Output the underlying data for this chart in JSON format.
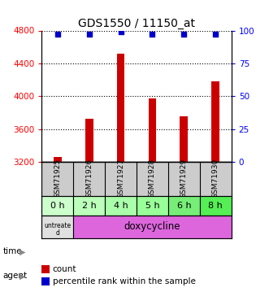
{
  "title": "GDS1550 / 11150_at",
  "samples": [
    "GSM71925",
    "GSM71926",
    "GSM71927",
    "GSM71928",
    "GSM71929",
    "GSM71930"
  ],
  "counts": [
    3260,
    3720,
    4520,
    3970,
    3750,
    4180
  ],
  "percentiles": [
    97,
    97,
    99,
    97,
    97,
    97
  ],
  "bar_color": "#cc0000",
  "dot_color": "#0000cc",
  "ylim_left": [
    3200,
    4800
  ],
  "ylim_right": [
    0,
    100
  ],
  "yticks_left": [
    3200,
    3600,
    4000,
    4400,
    4800
  ],
  "yticks_right": [
    0,
    25,
    50,
    75,
    100
  ],
  "time_labels": [
    "0 h",
    "2 h",
    "4 h",
    "5 h",
    "6 h",
    "8 h"
  ],
  "time_bg_colors": [
    "#eeffee",
    "#ccffcc",
    "#aaffaa",
    "#88ff88",
    "#66ff66",
    "#44ff44"
  ],
  "sample_bg": "#cccccc",
  "agent_bg_untreated": "#e0e0e0",
  "agent_bg_doxy": "#dd66dd",
  "legend_count_color": "#cc0000",
  "legend_pct_color": "#0000cc",
  "background_color": "#ffffff",
  "bar_width": 0.25
}
